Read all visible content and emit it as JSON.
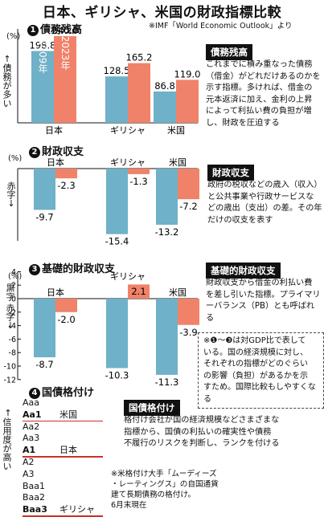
{
  "title": "日本、ギリシャ、米国の財政指標比較",
  "source": "※IMF「World Economic Outlook」より",
  "colors": {
    "blue": "#6fb1c8",
    "orange": "#f0826a",
    "dark": "#111111",
    "red": "#c8322a"
  },
  "sections": {
    "s1": {
      "num": "❶",
      "title": "債務残高",
      "unit": "(%)",
      "axis_note": "債務が多い",
      "box_title": "債務残高",
      "desc": [
        "これまでに積み重なった債務",
        "（借金）がどれだけあるのかを",
        "示す指標。多ければ、借金の",
        "元本返済に加え、金利の上昇",
        "によって利払い費の負担が増",
        "し、財政を圧迫する"
      ]
    },
    "s2": {
      "num": "❷",
      "title": "財政収支",
      "unit": "(%)",
      "axis_note": "赤字",
      "box_title": "財政収支",
      "desc": [
        "政府の税収などの歳入（収入）",
        "と公共事業や行政サービスな",
        "どの歳出（支出）の差。その年",
        "だけの収支を表す"
      ]
    },
    "s3": {
      "num": "❸",
      "title": "基礎的財政収支",
      "unit": "(%)",
      "axis_note_top": "黒字",
      "axis_note_bottom": "赤字",
      "box_title": "基礎的財政収支",
      "desc": [
        "財政収支から借金の利払い費",
        "を差し引いた指標。プライマリ",
        "ーバランス（PB）とも呼ばれる"
      ],
      "note": [
        "※❶〜❸は対GDP比で表して",
        "いる。国の経済規模に対し、",
        "それぞれの指標がどのぐらい",
        "の影響（負担）があるかを示",
        "すため。国際比較もしやすくなる"
      ]
    },
    "s4": {
      "num": "❹",
      "title": "国債格付け",
      "axis_note": "信用度が高い",
      "box_title": "国債格付け",
      "desc": [
        "格付け会社が国の経済規模などさまざまな",
        "指標から、国債の利払いの確実性や債務",
        "不履行のリスクを判断し、ランクを付ける"
      ],
      "ratings": [
        "Aaa",
        "Aa1",
        "Aa2",
        "Aa3",
        "A1",
        "A2",
        "A3",
        "Baa1",
        "Baa2",
        "Baa3"
      ],
      "markers": [
        {
          "rating": "Aa1",
          "country": "米国"
        },
        {
          "rating": "A1",
          "country": "日本"
        },
        {
          "rating": "Baa3",
          "country": "ギリシャ"
        }
      ],
      "footnote": [
        "※米格付け大手「ムーディーズ",
        "・レーティングス」の自国通貨",
        "建て長期債務の格付け。",
        "6月末現在"
      ]
    }
  },
  "chart_data": [
    {
      "type": "bar",
      "title": "債務残高",
      "categories": [
        "日本",
        "ギリシャ",
        "米国"
      ],
      "series": [
        {
          "name": "2009年",
          "values": [
            198.8,
            128.5,
            86.8
          ]
        },
        {
          "name": "2023年",
          "values": [
            240.0,
            165.2,
            119.0
          ]
        }
      ],
      "ylabel": "(%)",
      "value_labels": [
        [
          "198.8",
          "128.5",
          "86.8"
        ],
        [
          "240.0",
          "165.2",
          "119.0"
        ]
      ],
      "ylim": [
        0,
        250
      ]
    },
    {
      "type": "bar",
      "title": "財政収支",
      "categories": [
        "日本",
        "ギリシャ",
        "米国"
      ],
      "series": [
        {
          "name": "2009年",
          "values": [
            -9.7,
            -15.4,
            -13.2
          ]
        },
        {
          "name": "2023年",
          "values": [
            -2.3,
            -1.3,
            -7.2
          ]
        }
      ],
      "ylabel": "(%)",
      "value_labels": [
        [
          "-9.7",
          "-15.4",
          "-13.2"
        ],
        [
          "-2.3",
          "-1.3",
          "-7.2"
        ]
      ],
      "ylim": [
        -16,
        0
      ]
    },
    {
      "type": "bar",
      "title": "基礎的財政収支",
      "categories": [
        "日本",
        "ギリシャ",
        "米国"
      ],
      "series": [
        {
          "name": "2009年",
          "values": [
            -8.7,
            -10.3,
            -11.3
          ]
        },
        {
          "name": "2023年",
          "values": [
            -2.0,
            2.1,
            -3.9
          ]
        }
      ],
      "ylabel": "(%)",
      "value_labels": [
        [
          "-8.7",
          "-10.3",
          "-11.3"
        ],
        [
          "-2.0",
          "2.1",
          "-3.9"
        ]
      ],
      "ylim": [
        -12,
        4
      ],
      "yticks": [
        "4",
        "2",
        "0",
        "-2",
        "-4",
        "-6",
        "-8",
        "-10",
        "-12"
      ]
    }
  ]
}
